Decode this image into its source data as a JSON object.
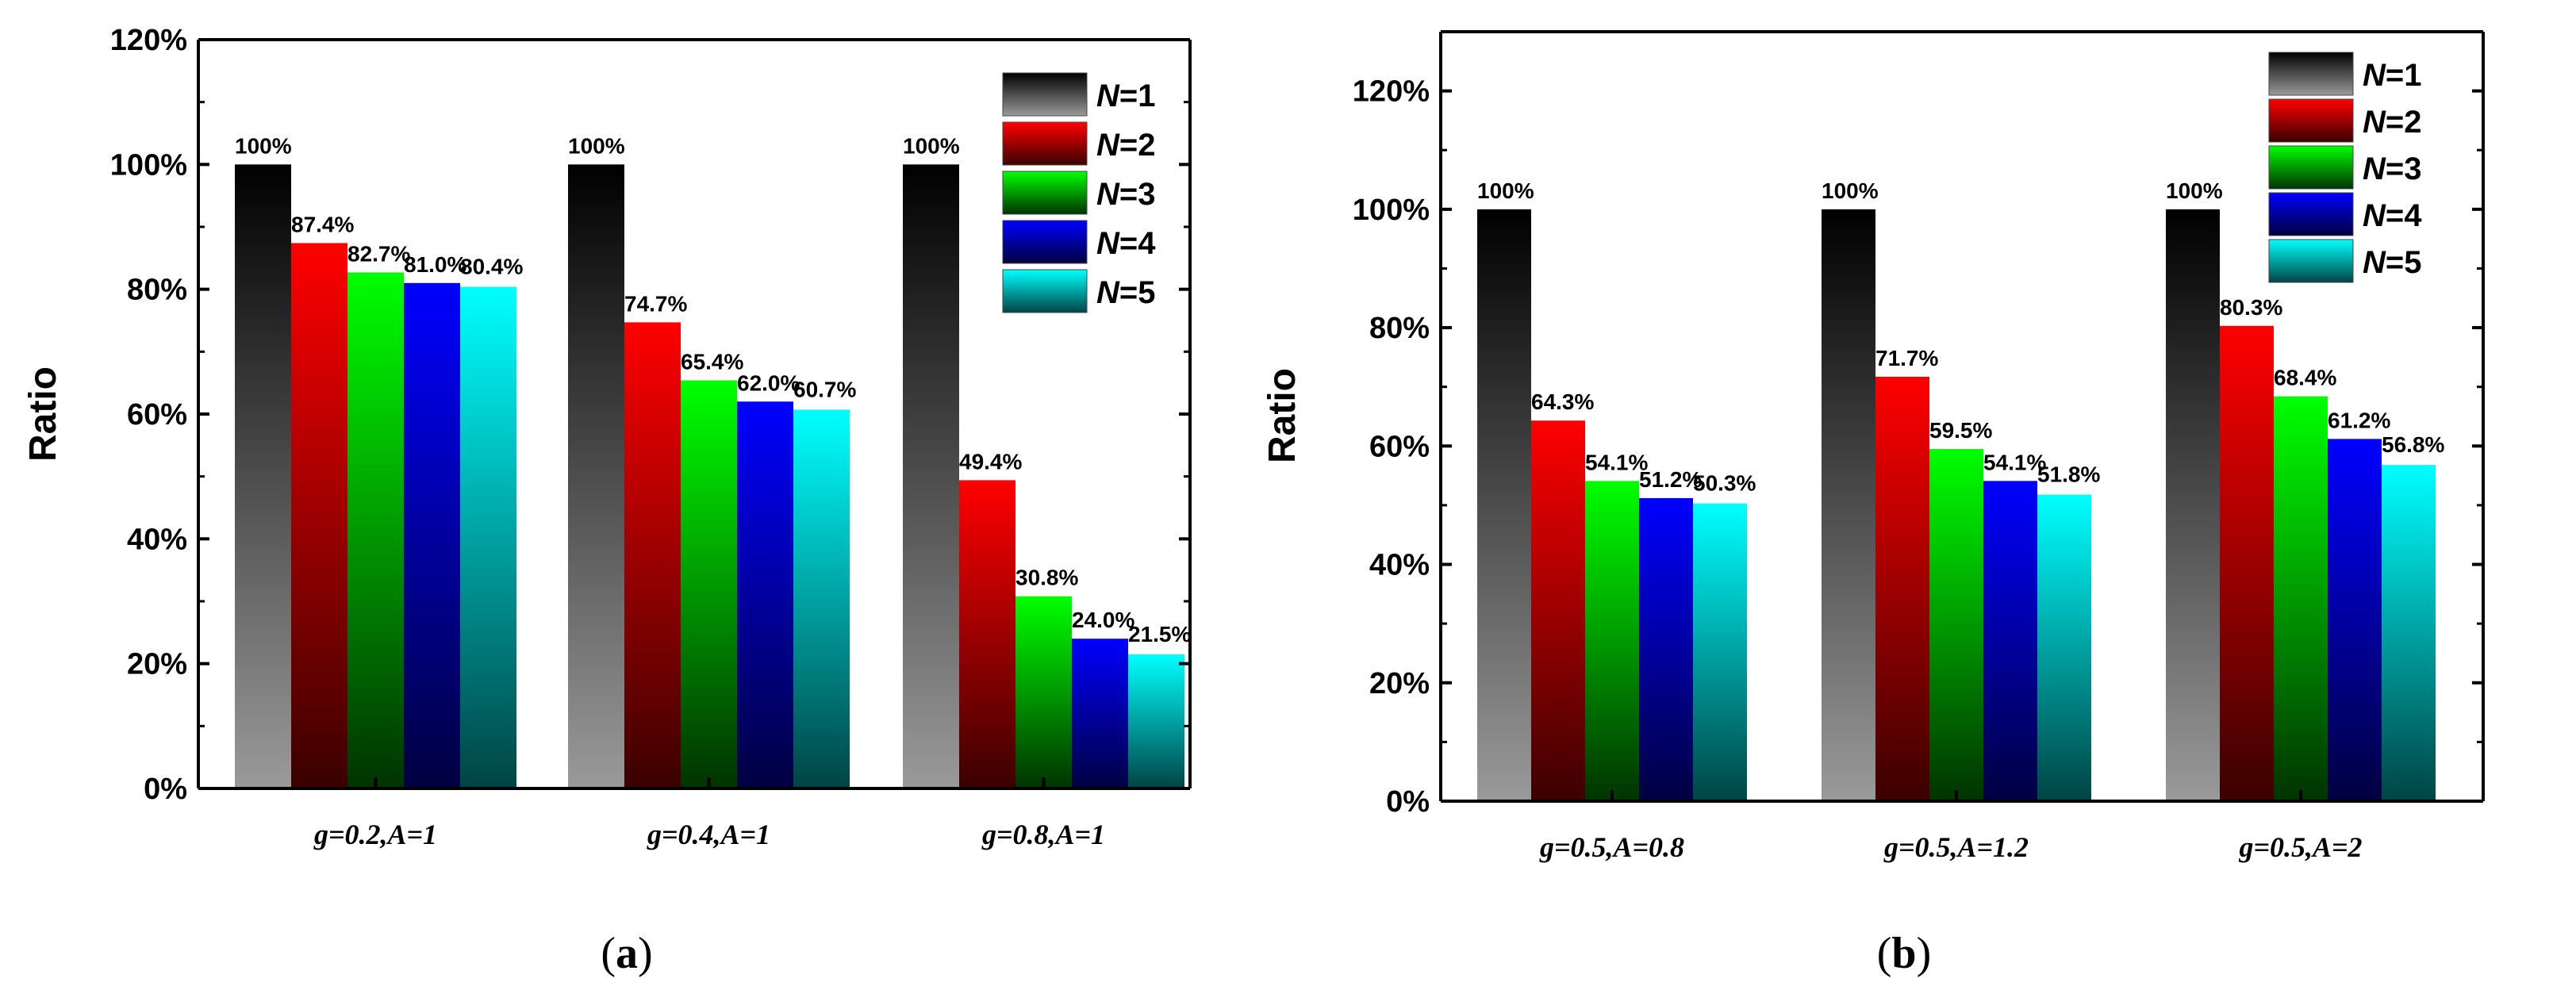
{
  "colors": {
    "N1": [
      "#000000",
      "#9a9a9a"
    ],
    "N2": [
      "#ff0000",
      "#3a0000"
    ],
    "N3": [
      "#00ff00",
      "#003300"
    ],
    "N4": [
      "#0000ff",
      "#000040"
    ],
    "N5": [
      "#00ffff",
      "#004444"
    ]
  },
  "chart_data": [
    {
      "type": "bar",
      "panel_label": "a",
      "xlabel": "",
      "ylabel": "Ratio",
      "ylim": [
        0,
        120
      ],
      "yticks": [
        0,
        20,
        40,
        60,
        80,
        100,
        120
      ],
      "ytick_labels": [
        "0%",
        "20%",
        "40%",
        "60%",
        "80%",
        "100%",
        "120%"
      ],
      "categories": [
        "g=0.2,A=1",
        "g=0.4,A=1",
        "g=0.8,A=1"
      ],
      "legend_position": "top-right",
      "series": [
        {
          "name": "N=1",
          "prefix": "N",
          "suffix": "=1",
          "values": [
            100,
            100,
            100
          ],
          "labels": [
            "100%",
            "100%",
            "100%"
          ]
        },
        {
          "name": "N=2",
          "prefix": "N",
          "suffix": "=2",
          "values": [
            87.4,
            74.7,
            49.4
          ],
          "labels": [
            "87.4%",
            "74.7%",
            "49.4%"
          ]
        },
        {
          "name": "N=3",
          "prefix": "N",
          "suffix": "=3",
          "values": [
            82.7,
            65.4,
            30.8
          ],
          "labels": [
            "82.7%",
            "65.4%",
            "30.8%"
          ]
        },
        {
          "name": "N=4",
          "prefix": "N",
          "suffix": "=4",
          "values": [
            81.0,
            62.0,
            24.0
          ],
          "labels": [
            "81.0%",
            "62.0%",
            "24.0%"
          ]
        },
        {
          "name": "N=5",
          "prefix": "N",
          "suffix": "=5",
          "values": [
            80.4,
            60.7,
            21.5
          ],
          "labels": [
            "80.4%",
            "60.7%",
            "21.5%"
          ]
        }
      ]
    },
    {
      "type": "bar",
      "panel_label": "b",
      "xlabel": "",
      "ylabel": "Ratio",
      "ylim": [
        0,
        130
      ],
      "yticks": [
        0,
        20,
        40,
        60,
        80,
        100,
        120
      ],
      "ytick_labels": [
        "0%",
        "20%",
        "40%",
        "60%",
        "80%",
        "100%",
        "120%"
      ],
      "categories": [
        "g=0.5,A=0.8",
        "g=0.5,A=1.2",
        "g=0.5,A=2"
      ],
      "legend_position": "top-right",
      "series": [
        {
          "name": "N=1",
          "prefix": "N",
          "suffix": "=1",
          "values": [
            100,
            100,
            100
          ],
          "labels": [
            "100%",
            "100%",
            "100%"
          ]
        },
        {
          "name": "N=2",
          "prefix": "N",
          "suffix": "=2",
          "values": [
            64.3,
            71.7,
            80.3
          ],
          "labels": [
            "64.3%",
            "71.7%",
            "80.3%"
          ]
        },
        {
          "name": "N=3",
          "prefix": "N",
          "suffix": "=3",
          "values": [
            54.1,
            59.5,
            68.4
          ],
          "labels": [
            "54.1%",
            "59.5%",
            "68.4%"
          ]
        },
        {
          "name": "N=4",
          "prefix": "N",
          "suffix": "=4",
          "values": [
            51.2,
            54.1,
            61.2
          ],
          "labels": [
            "51.2%",
            "54.1%",
            "61.2%"
          ]
        },
        {
          "name": "N=5",
          "prefix": "N",
          "suffix": "=5",
          "values": [
            50.3,
            51.8,
            56.8
          ],
          "labels": [
            "50.3%",
            "51.8%",
            "56.8%"
          ]
        }
      ]
    }
  ]
}
